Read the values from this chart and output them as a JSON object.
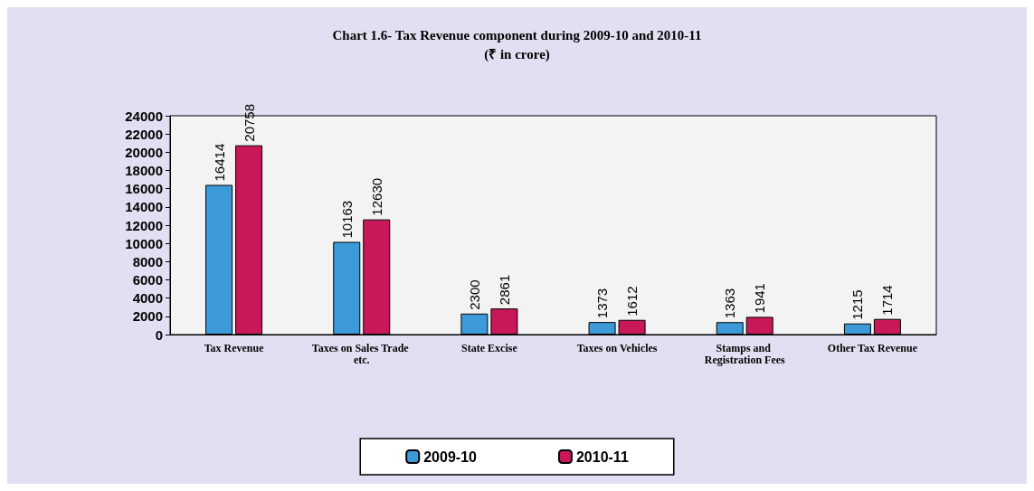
{
  "chart_data": {
    "type": "bar",
    "title": "Chart 1.6- Tax Revenue component during 2009-10 and 2010-11",
    "subtitle": "(₹ in crore)",
    "categories": [
      "Tax Revenue",
      "Taxes on Sales Trade etc.",
      "State Excise",
      "Taxes on Vehicles",
      "Stamps and Registration Fees",
      "Other Tax Revenue"
    ],
    "series": [
      {
        "name": "2009-10",
        "color": "#3d9ad8",
        "values": [
          16414,
          10163,
          2300,
          1373,
          1363,
          1215
        ]
      },
      {
        "name": "2010-11",
        "color": "#c8185a",
        "values": [
          20758,
          12630,
          2861,
          1612,
          1941,
          1714
        ]
      }
    ],
    "ylim": [
      0,
      24000
    ],
    "yticks": [
      0,
      2000,
      4000,
      6000,
      8000,
      10000,
      12000,
      14000,
      16000,
      18000,
      20000,
      22000,
      24000
    ],
    "data_labels": true,
    "legend": "bottom",
    "grid": false
  }
}
